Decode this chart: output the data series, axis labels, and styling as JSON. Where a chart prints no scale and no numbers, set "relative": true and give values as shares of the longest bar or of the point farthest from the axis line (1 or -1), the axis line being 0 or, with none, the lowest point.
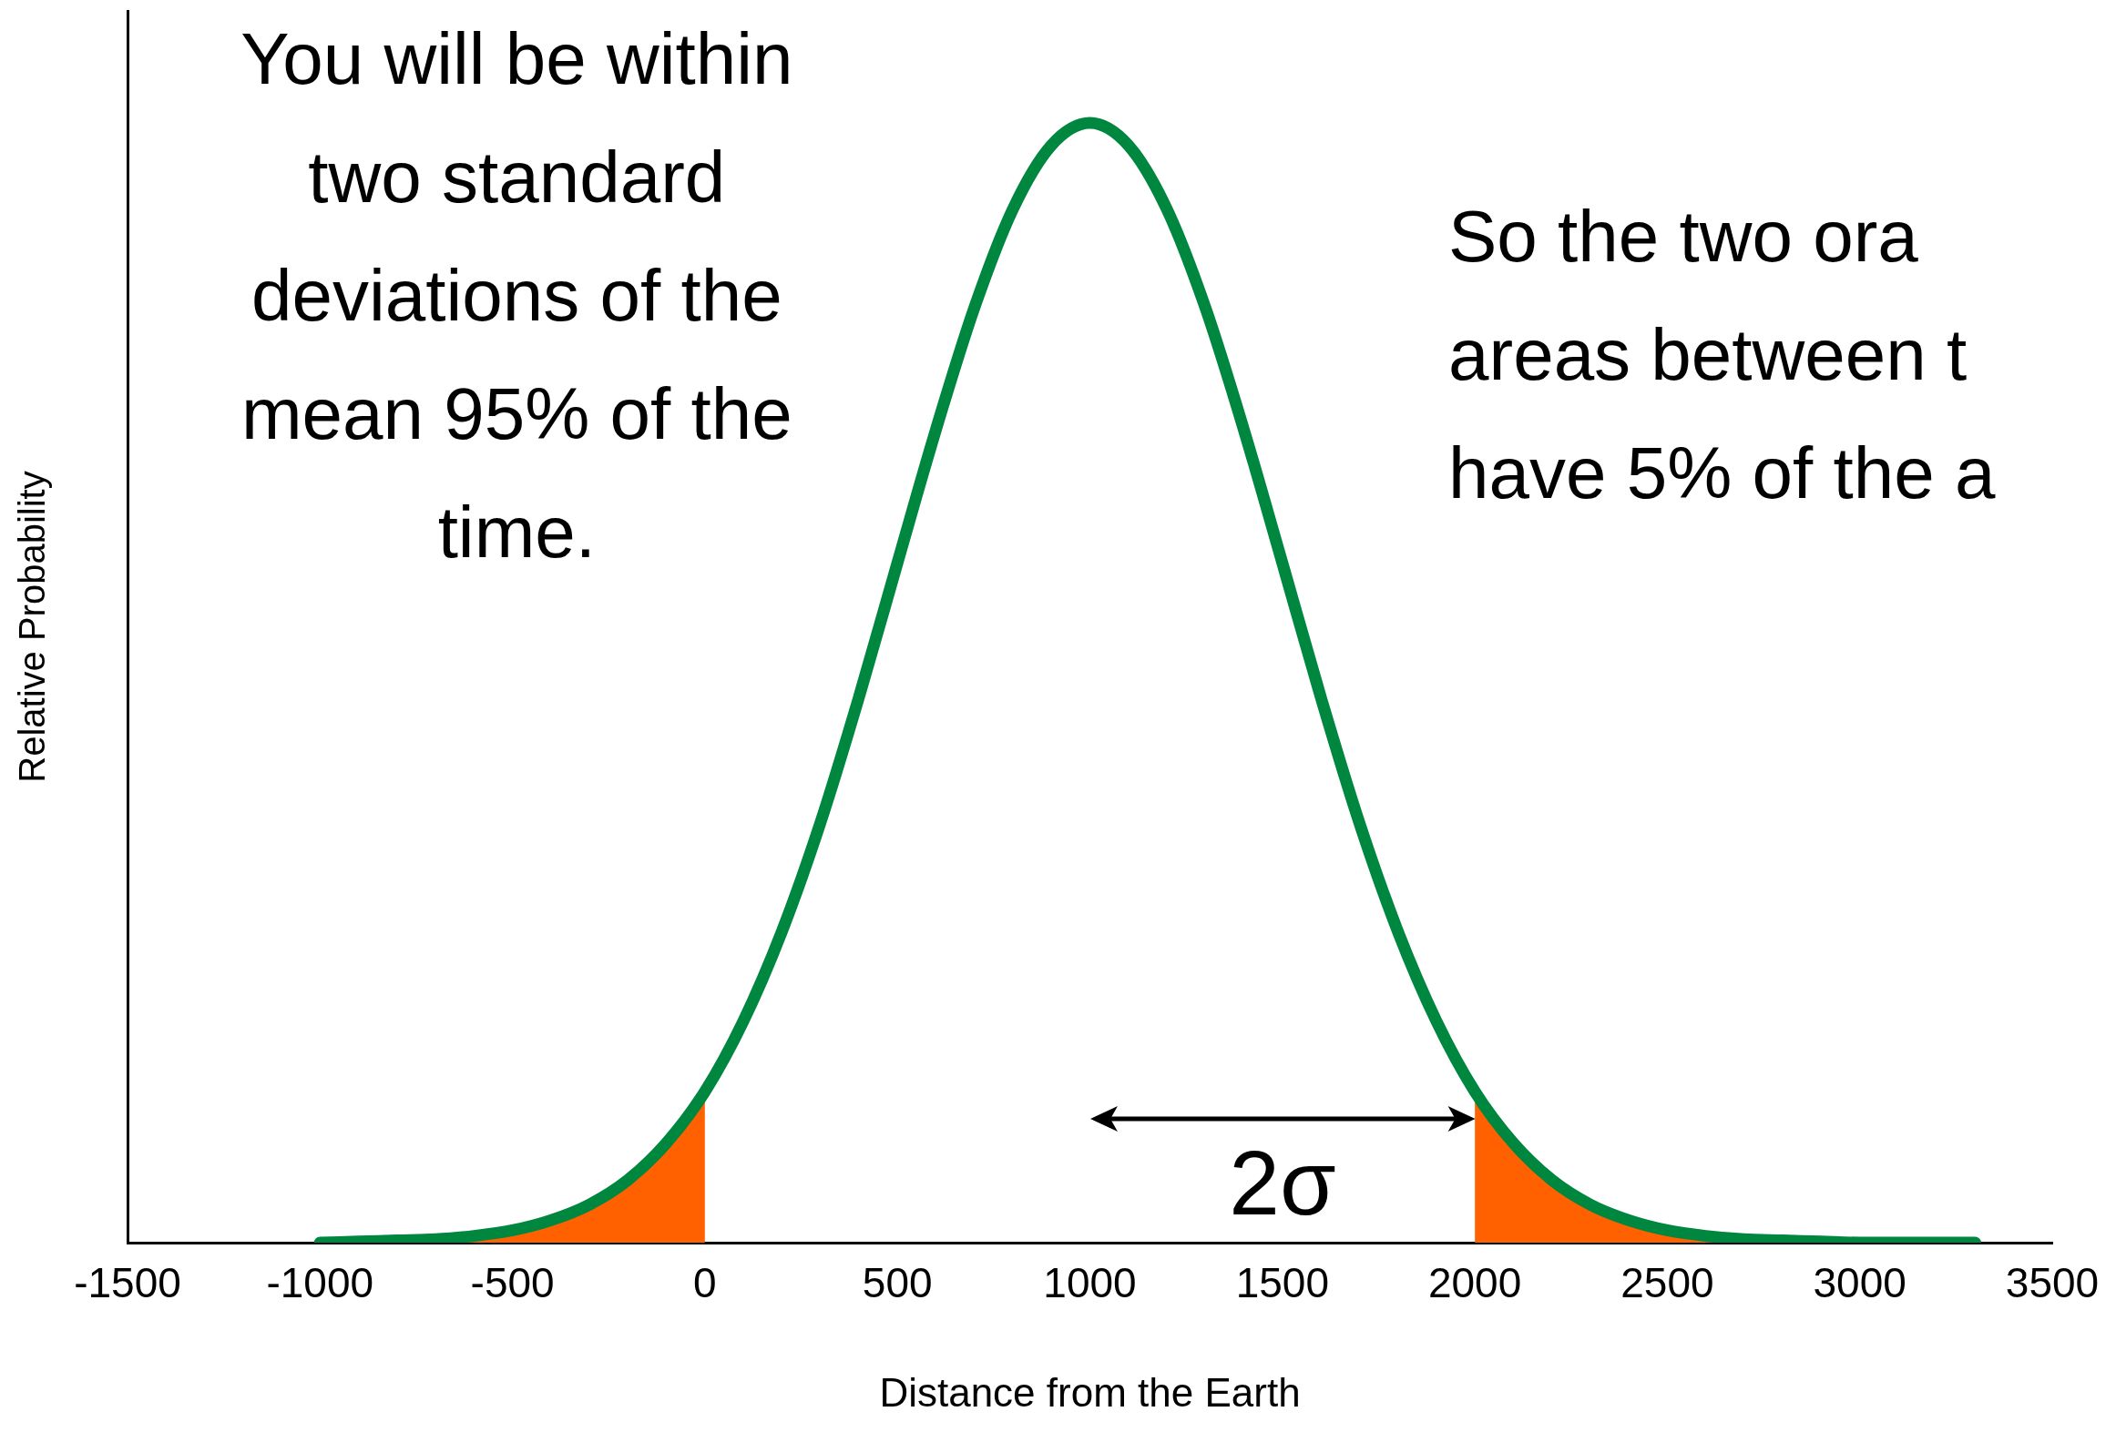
{
  "chart_data": {
    "type": "line",
    "relative": true,
    "xlabel": "Distance from the Earth",
    "ylabel": "Relative Probability",
    "xlim": [
      -1500,
      3500
    ],
    "xticks": [
      -1500,
      -1000,
      -500,
      0,
      500,
      1000,
      1500,
      2000,
      2500,
      3000,
      3500
    ],
    "grid": false,
    "legend": false,
    "series": [
      {
        "type": "area",
        "color": "#ff6000",
        "x": [
          -1000,
          -900,
          -800,
          -700,
          -600,
          -500,
          -400,
          -300,
          -200,
          -100,
          0
        ],
        "values": [
          0,
          0.001,
          0.002,
          0.003,
          0.006,
          0.011,
          0.02,
          0.034,
          0.056,
          0.089,
          0.135
        ]
      },
      {
        "type": "area",
        "color": "#ff6000",
        "x": [
          2000,
          2100,
          2200,
          2300,
          2400,
          2500,
          2600,
          2700,
          2800,
          2900,
          3000,
          3100,
          3200,
          3300
        ],
        "values": [
          0.135,
          0.089,
          0.056,
          0.034,
          0.02,
          0.011,
          0.006,
          0.003,
          0.002,
          0.001,
          0,
          0,
          0,
          0
        ]
      },
      {
        "color": "#00873f",
        "x": [
          -1000,
          -900,
          -800,
          -700,
          -600,
          -500,
          -400,
          -300,
          -200,
          -100,
          0,
          100,
          200,
          300,
          400,
          500,
          600,
          700,
          800,
          900,
          1000,
          1100,
          1200,
          1300,
          1400,
          1500,
          1600,
          1700,
          1800,
          1900,
          2000,
          2100,
          2200,
          2300,
          2400,
          2500,
          2600,
          2700,
          2800,
          2900,
          3000,
          3100,
          3200,
          3300
        ],
        "values": [
          0,
          0.001,
          0.002,
          0.003,
          0.006,
          0.011,
          0.02,
          0.034,
          0.056,
          0.089,
          0.135,
          0.198,
          0.278,
          0.375,
          0.487,
          0.607,
          0.726,
          0.835,
          0.923,
          0.98,
          1,
          0.98,
          0.923,
          0.835,
          0.726,
          0.607,
          0.487,
          0.375,
          0.278,
          0.198,
          0.135,
          0.089,
          0.056,
          0.034,
          0.02,
          0.011,
          0.006,
          0.003,
          0.002,
          0.001,
          0,
          0,
          0,
          0
        ]
      }
    ],
    "annotations": [
      "You will be within\ntwo standard\ndeviations of the\nmean 95% of the\ntime.",
      "So the two ora\nareas between t\nhave 5% of the a",
      "2σ"
    ]
  }
}
